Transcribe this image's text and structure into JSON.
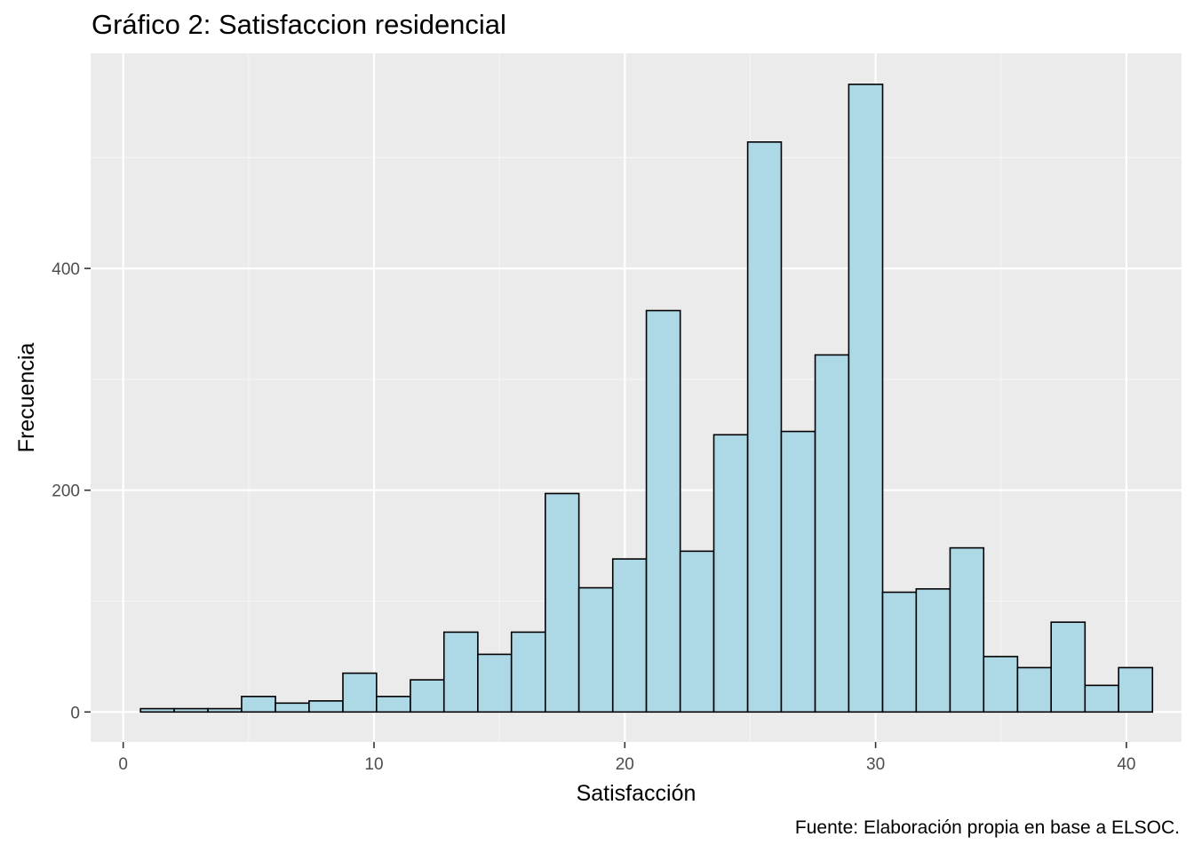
{
  "chart_data": {
    "type": "bar",
    "title": "Gráfico 2: Satisfaccion residencial",
    "xlabel": "Satisfacción",
    "ylabel": "Frecuencia",
    "caption": "Fuente: Elaboración propia en base a ELSOC.",
    "xlim": [
      -1.3,
      42.2
    ],
    "ylim": [
      -27,
      594
    ],
    "x_ticks": [
      0,
      10,
      20,
      30,
      40
    ],
    "y_ticks": [
      0,
      200,
      400
    ],
    "grid": true,
    "bin_width": 1.345,
    "bins": [
      {
        "start": 0.69,
        "end": 2.03,
        "count": 3
      },
      {
        "start": 2.03,
        "end": 3.38,
        "count": 3
      },
      {
        "start": 3.38,
        "end": 4.72,
        "count": 3
      },
      {
        "start": 4.72,
        "end": 6.07,
        "count": 14
      },
      {
        "start": 6.07,
        "end": 7.41,
        "count": 8
      },
      {
        "start": 7.41,
        "end": 8.76,
        "count": 10
      },
      {
        "start": 8.76,
        "end": 10.1,
        "count": 35
      },
      {
        "start": 10.1,
        "end": 11.45,
        "count": 14
      },
      {
        "start": 11.45,
        "end": 12.79,
        "count": 29
      },
      {
        "start": 12.79,
        "end": 14.14,
        "count": 72
      },
      {
        "start": 14.14,
        "end": 15.48,
        "count": 52
      },
      {
        "start": 15.48,
        "end": 16.83,
        "count": 72
      },
      {
        "start": 16.83,
        "end": 18.17,
        "count": 197
      },
      {
        "start": 18.17,
        "end": 19.52,
        "count": 112
      },
      {
        "start": 19.52,
        "end": 20.86,
        "count": 138
      },
      {
        "start": 20.86,
        "end": 22.21,
        "count": 362
      },
      {
        "start": 22.21,
        "end": 23.55,
        "count": 145
      },
      {
        "start": 23.55,
        "end": 24.9,
        "count": 250
      },
      {
        "start": 24.9,
        "end": 26.24,
        "count": 514
      },
      {
        "start": 26.24,
        "end": 27.59,
        "count": 253
      },
      {
        "start": 27.59,
        "end": 28.93,
        "count": 322
      },
      {
        "start": 28.93,
        "end": 30.28,
        "count": 566
      },
      {
        "start": 30.28,
        "end": 31.62,
        "count": 108
      },
      {
        "start": 31.62,
        "end": 32.97,
        "count": 111
      },
      {
        "start": 32.97,
        "end": 34.31,
        "count": 148
      },
      {
        "start": 34.31,
        "end": 35.66,
        "count": 50
      },
      {
        "start": 35.66,
        "end": 37.0,
        "count": 40
      },
      {
        "start": 37.0,
        "end": 38.35,
        "count": 81
      },
      {
        "start": 38.35,
        "end": 39.69,
        "count": 24
      },
      {
        "start": 39.69,
        "end": 41.04,
        "count": 40
      }
    ],
    "colors": {
      "panel": "#ebebeb",
      "grid_major": "#ffffff",
      "grid_minor": "#f5f5f5",
      "bar_fill": "#add8e6",
      "bar_stroke": "#000000",
      "tick": "#333333"
    }
  }
}
